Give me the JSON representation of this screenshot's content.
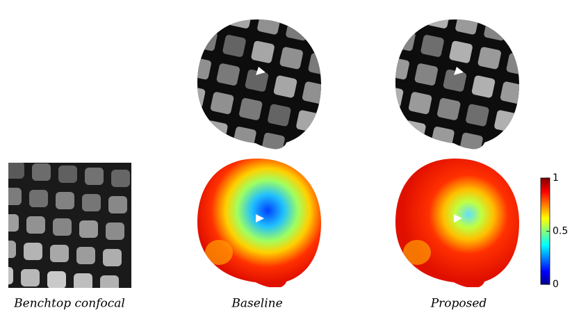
{
  "captions": [
    "Benchtop confocal",
    "Baseline",
    "Proposed"
  ],
  "colorbar": {
    "ylim": [
      0,
      1
    ],
    "yticks": [
      0,
      0.5,
      1
    ]
  }
}
